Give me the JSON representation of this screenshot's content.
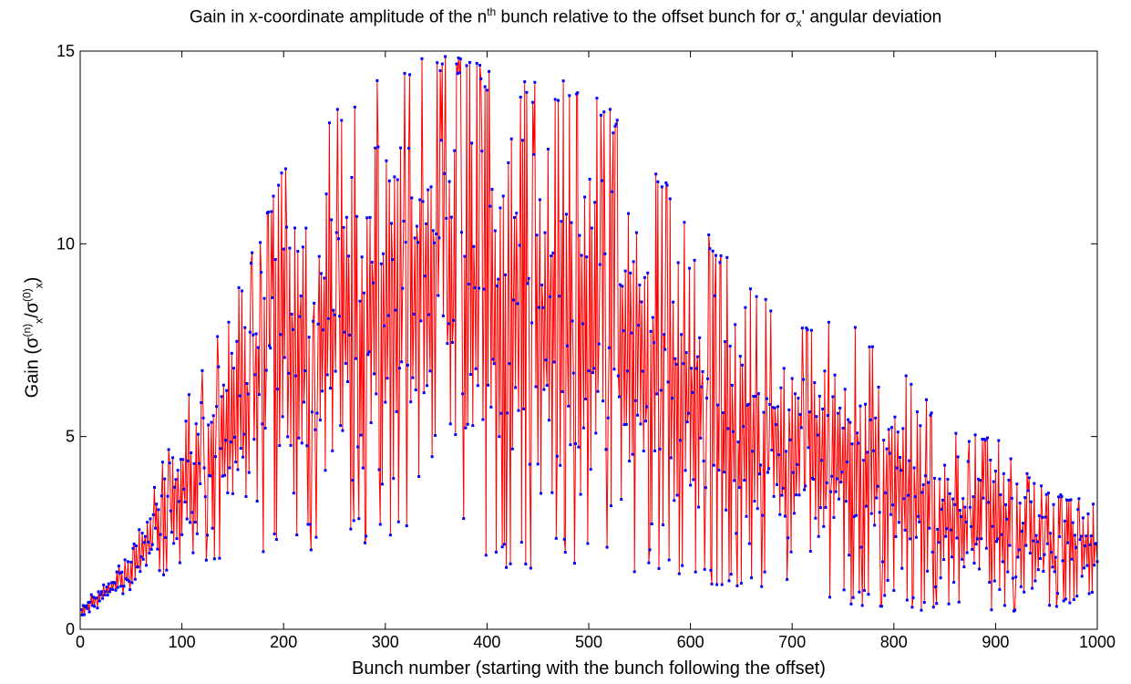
{
  "title": {
    "pre": "Gain in x-coordinate amplitude of the n",
    "sup": "th",
    "mid": " bunch relative to the offset bunch for ",
    "sigma": "σ",
    "sub": "x",
    "post": "' angular deviation"
  },
  "xlabel": "Bunch number (starting with the bunch following the offset)",
  "ylabel": {
    "pre": "Gain (",
    "s1": "σ",
    "sup1": "(n)",
    "sub1": "x",
    "slash": "/",
    "s2": "σ",
    "sup2": "(0)",
    "sub2": "x",
    "post": ")"
  },
  "colors": {
    "line": "#ff0000",
    "marker": "#0000ff",
    "axes": "#000000"
  },
  "chart_data": {
    "type": "line",
    "xlim": [
      0,
      1000
    ],
    "ylim": [
      0,
      15
    ],
    "x_ticks": [
      "0",
      "100",
      "200",
      "300",
      "400",
      "500",
      "600",
      "700",
      "800",
      "900",
      "1000"
    ],
    "y_ticks": [
      "0",
      "5",
      "10",
      "15"
    ],
    "grid": false,
    "series_description": "Gain per bunch for bunch numbers 1-1000; strongly oscillating between an upper and lower envelope.",
    "envelope_x": [
      0,
      50,
      100,
      150,
      200,
      250,
      300,
      350,
      380,
      400,
      450,
      500,
      550,
      600,
      650,
      700,
      750,
      800,
      850,
      900,
      950,
      1000
    ],
    "upper_envelope": [
      0.6,
      2.0,
      5.8,
      8.5,
      12.0,
      13.5,
      14.6,
      15.0,
      15.0,
      14.5,
      14.2,
      14.3,
      12.5,
      10.8,
      9.3,
      7.9,
      8.0,
      7.3,
      5.2,
      5.0,
      3.6,
      3.3
    ],
    "lower_envelope": [
      0.3,
      1.0,
      1.6,
      1.9,
      2.0,
      2.1,
      2.1,
      2.3,
      2.2,
      1.6,
      1.5,
      1.3,
      1.4,
      1.2,
      1.1,
      0.9,
      0.6,
      0.5,
      0.4,
      0.4,
      0.4,
      0.9
    ],
    "n_points": 1000
  }
}
